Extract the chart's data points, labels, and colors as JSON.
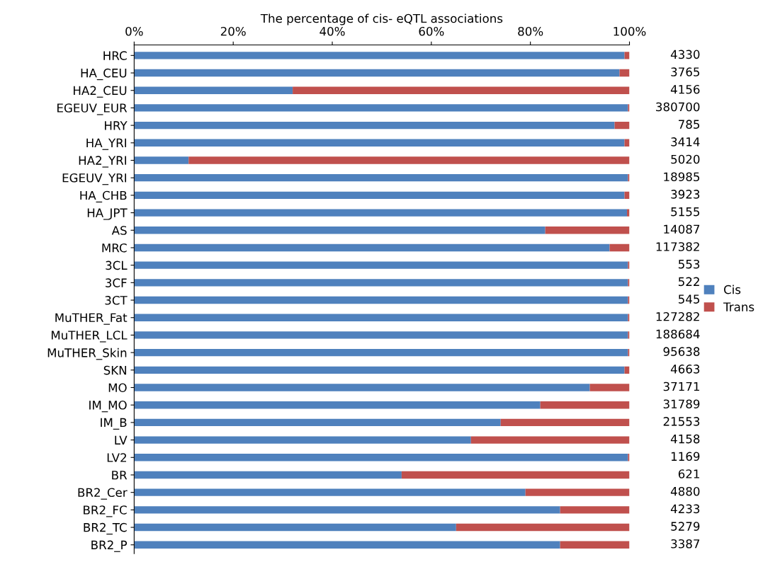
{
  "chart_data": {
    "type": "bar",
    "orientation": "horizontal",
    "stacked": true,
    "xlabel": "The percentage of cis- eQTL associations",
    "categories": [
      "HRC",
      "HA_CEU",
      "HA2_CEU",
      "EGEUV_EUR",
      "HRY",
      "HA_YRI",
      "HA2_YRI",
      "EGEUV_YRI",
      "HA_CHB",
      "HA_JPT",
      "AS",
      "MRC",
      "3CL",
      "3CF",
      "3CT",
      "MuTHER_Fat",
      "MuTHER_LCL",
      "MuTHER_Skin",
      "SKN",
      "MO",
      "IM_MO",
      "IM_B",
      "LV",
      "LV2",
      "BR",
      "BR2_Cer",
      "BR2_FC",
      "BR2_TC",
      "BR2_P"
    ],
    "series": [
      {
        "name": "Cis",
        "color": "#4f81bd",
        "values": [
          99,
          98,
          32,
          99.7,
          97,
          99,
          11,
          99.7,
          99,
          99.5,
          83,
          96,
          99.7,
          99.7,
          99.7,
          99.7,
          99.7,
          99.7,
          99,
          92,
          82,
          74,
          68,
          99.7,
          54,
          79,
          86,
          65,
          86
        ]
      },
      {
        "name": "Trans",
        "color": "#c0504d",
        "values": [
          1,
          2,
          68,
          0.3,
          3,
          1,
          89,
          0.3,
          1,
          0.5,
          17,
          4,
          0.3,
          0.3,
          0.3,
          0.3,
          0.3,
          0.3,
          1,
          8,
          18,
          26,
          32,
          0.3,
          46,
          21,
          14,
          35,
          14
        ]
      }
    ],
    "xlim": [
      0,
      100
    ],
    "xticks": [
      {
        "value": 0,
        "label": "0%"
      },
      {
        "value": 20,
        "label": "20%"
      },
      {
        "value": 40,
        "label": "40%"
      },
      {
        "value": 60,
        "label": "60%"
      },
      {
        "value": 80,
        "label": "80%"
      },
      {
        "value": 100,
        "label": "100%"
      }
    ],
    "annotations": [
      "4330",
      "3765",
      "4156",
      "380700",
      "785",
      "3414",
      "5020",
      "18985",
      "3923",
      "5155",
      "14087",
      "117382",
      "553",
      "522",
      "545",
      "127282",
      "188684",
      "95638",
      "4663",
      "37171",
      "31789",
      "21553",
      "4158",
      "1169",
      "621",
      "4880",
      "4233",
      "5279",
      "3387"
    ],
    "legend": "right",
    "grid": false
  }
}
